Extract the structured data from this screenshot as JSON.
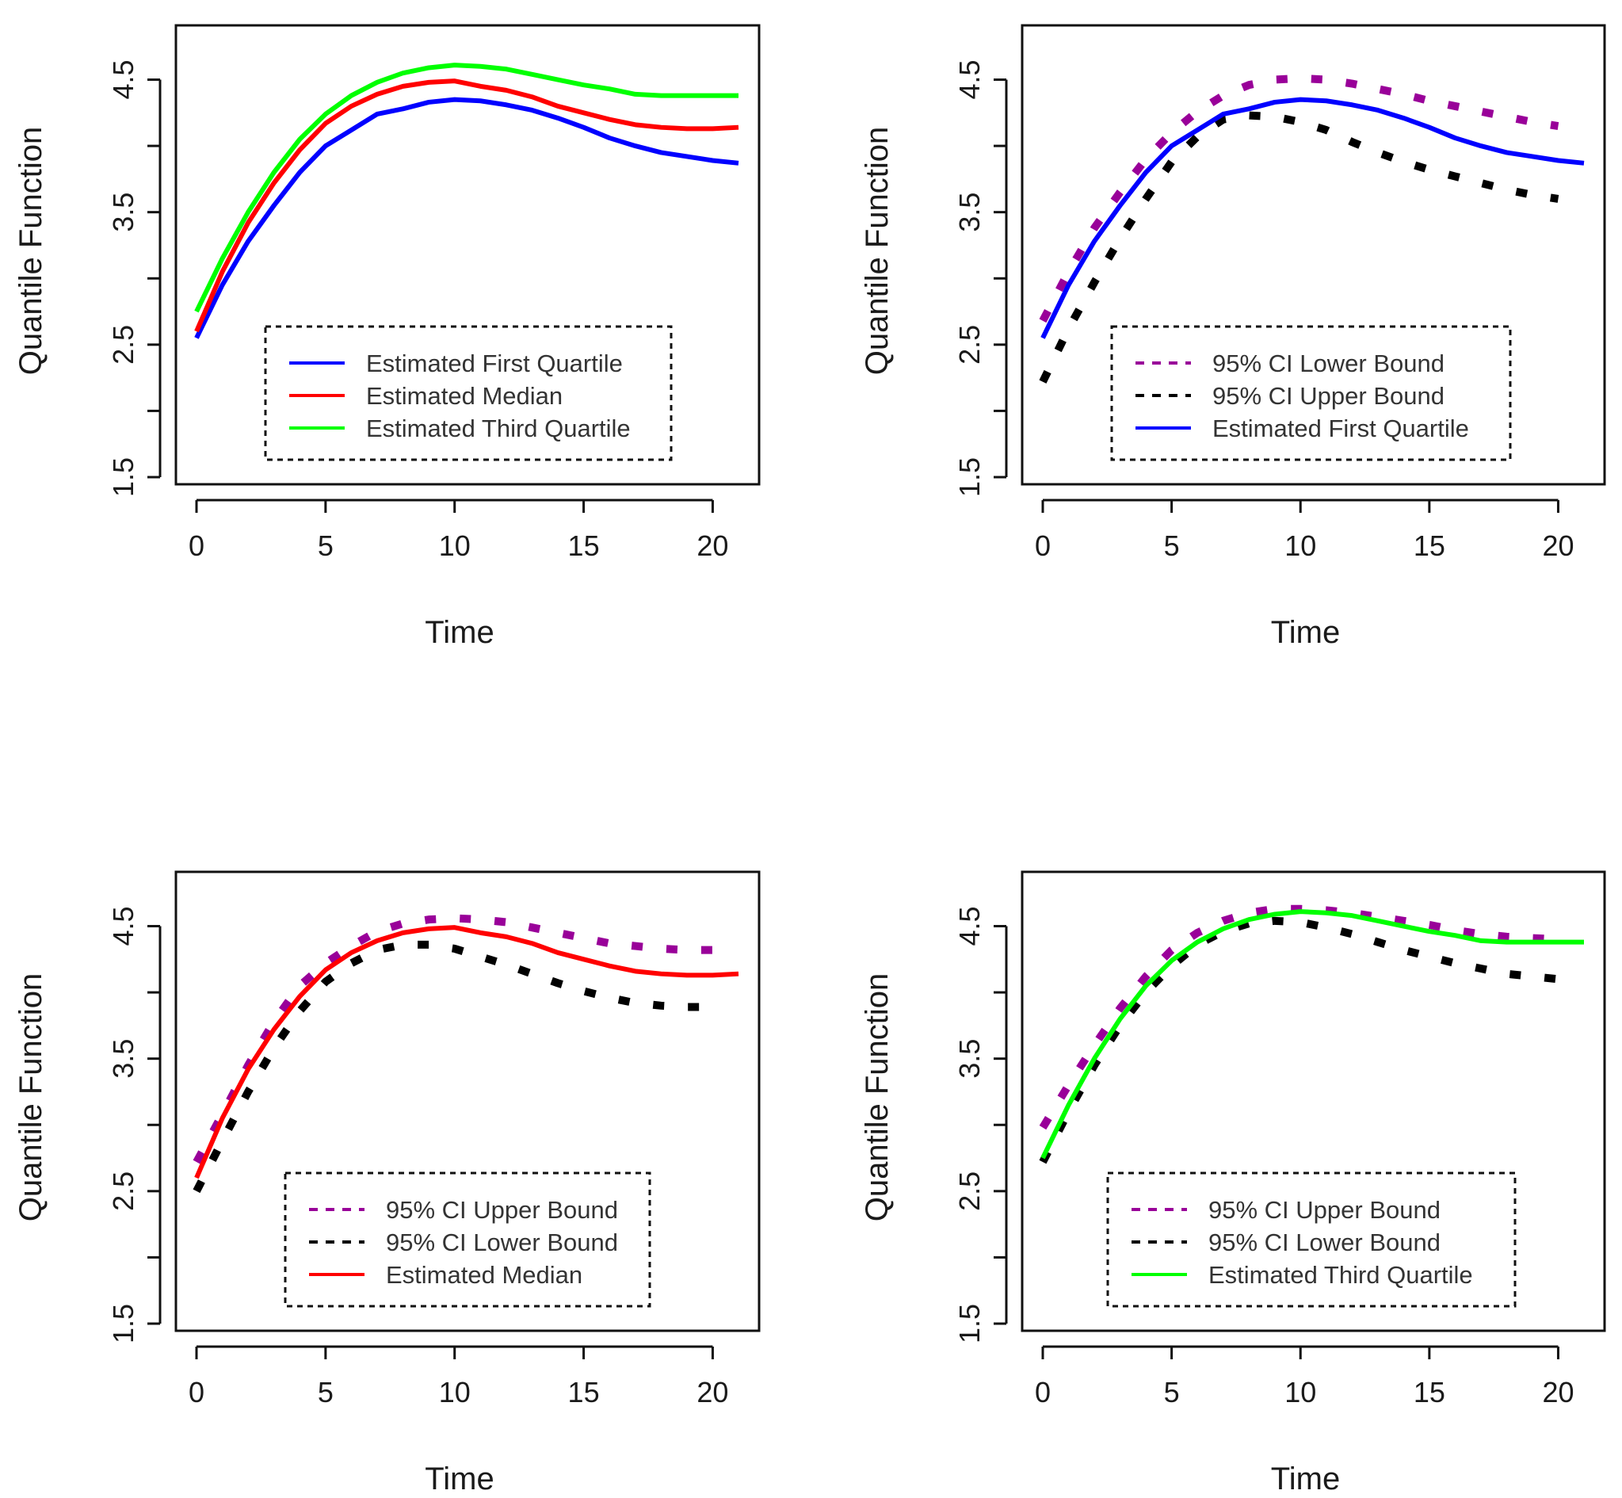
{
  "chart_data": [
    {
      "type": "line",
      "panel": "top-left",
      "title": "",
      "xlabel": "Time",
      "ylabel": "Quantile Function",
      "xlim": [
        0,
        21
      ],
      "ylim": [
        1.5,
        4.85
      ],
      "xticks": [
        0,
        5,
        10,
        15,
        20
      ],
      "yticks": [
        1.5,
        2.5,
        3.5,
        4.5
      ],
      "x": [
        0,
        1,
        2,
        3,
        4,
        5,
        6,
        7,
        8,
        9,
        10,
        11,
        12,
        13,
        14,
        15,
        16,
        17,
        18,
        19,
        20,
        21
      ],
      "legend_position": "bottom-right",
      "series": [
        {
          "name": "Estimated First Quartile",
          "color": "#0000ff",
          "style": "solid",
          "values": [
            2.55,
            2.95,
            3.28,
            3.55,
            3.8,
            4.0,
            4.12,
            4.24,
            4.28,
            4.33,
            4.35,
            4.34,
            4.31,
            4.27,
            4.21,
            4.14,
            4.06,
            4.0,
            3.95,
            3.92,
            3.89,
            3.87
          ]
        },
        {
          "name": "Estimated Median",
          "color": "#ff0000",
          "style": "solid",
          "values": [
            2.6,
            3.05,
            3.42,
            3.72,
            3.97,
            4.17,
            4.3,
            4.39,
            4.45,
            4.48,
            4.49,
            4.45,
            4.42,
            4.37,
            4.3,
            4.25,
            4.2,
            4.16,
            4.14,
            4.13,
            4.13,
            4.14
          ]
        },
        {
          "name": "Estimated Third Quartile",
          "color": "#00ff00",
          "style": "solid",
          "values": [
            2.75,
            3.15,
            3.5,
            3.8,
            4.05,
            4.24,
            4.38,
            4.48,
            4.55,
            4.59,
            4.61,
            4.6,
            4.58,
            4.54,
            4.5,
            4.46,
            4.43,
            4.39,
            4.38,
            4.38,
            4.38,
            4.38
          ]
        }
      ]
    },
    {
      "type": "line",
      "panel": "top-right",
      "title": "",
      "xlabel": "Time",
      "ylabel": "Quantile Function",
      "xlim": [
        0,
        21
      ],
      "ylim": [
        1.5,
        4.85
      ],
      "xticks": [
        0,
        5,
        10,
        15,
        20
      ],
      "yticks": [
        1.5,
        2.5,
        3.5,
        4.5
      ],
      "x": [
        0,
        1,
        2,
        3,
        4,
        5,
        6,
        7,
        8,
        9,
        10,
        11,
        12,
        13,
        14,
        15,
        16,
        17,
        18,
        19,
        20,
        21
      ],
      "legend_position": "bottom-right",
      "series": [
        {
          "name": "95% CI Lower Bound",
          "color": "#990099",
          "style": "dashed",
          "values": [
            2.68,
            3.05,
            3.38,
            3.65,
            3.9,
            4.1,
            4.26,
            4.38,
            4.46,
            4.5,
            4.51,
            4.5,
            4.47,
            4.43,
            4.39,
            4.34,
            4.3,
            4.26,
            4.22,
            4.18,
            4.15,
            null
          ]
        },
        {
          "name": "95% CI Upper Bound",
          "color": "#000000",
          "style": "dashed",
          "values": [
            2.22,
            2.62,
            2.97,
            3.3,
            3.6,
            3.88,
            4.07,
            4.2,
            4.23,
            4.22,
            4.18,
            4.12,
            4.03,
            3.95,
            3.88,
            3.82,
            3.77,
            3.72,
            3.67,
            3.63,
            3.6,
            null
          ]
        },
        {
          "name": "Estimated First Quartile",
          "color": "#0000ff",
          "style": "solid",
          "values": [
            2.55,
            2.95,
            3.28,
            3.55,
            3.8,
            4.0,
            4.12,
            4.24,
            4.28,
            4.33,
            4.35,
            4.34,
            4.31,
            4.27,
            4.21,
            4.14,
            4.06,
            4.0,
            3.95,
            3.92,
            3.89,
            3.87
          ]
        }
      ]
    },
    {
      "type": "line",
      "panel": "bottom-left",
      "title": "",
      "xlabel": "Time",
      "ylabel": "Quantile Function",
      "xlim": [
        0,
        21
      ],
      "ylim": [
        1.5,
        4.85
      ],
      "xticks": [
        0,
        5,
        10,
        15,
        20
      ],
      "yticks": [
        1.5,
        2.5,
        3.5,
        4.5
      ],
      "x": [
        0,
        1,
        2,
        3,
        4,
        5,
        6,
        7,
        8,
        9,
        10,
        11,
        12,
        13,
        14,
        15,
        16,
        17,
        18,
        19,
        20,
        21
      ],
      "legend_position": "bottom-right",
      "series": [
        {
          "name": "95% CI Upper Bound",
          "color": "#990099",
          "style": "dashed",
          "values": [
            2.72,
            3.08,
            3.45,
            3.78,
            4.05,
            4.22,
            4.35,
            4.46,
            4.52,
            4.55,
            4.56,
            4.55,
            4.53,
            4.49,
            4.45,
            4.41,
            4.37,
            4.35,
            4.33,
            4.32,
            4.32,
            null
          ]
        },
        {
          "name": "95% CI Lower Bound",
          "color": "#000000",
          "style": "dashed",
          "values": [
            2.5,
            2.88,
            3.25,
            3.58,
            3.86,
            4.08,
            4.22,
            4.32,
            4.36,
            4.36,
            4.33,
            4.27,
            4.21,
            4.14,
            4.07,
            4.01,
            3.96,
            3.92,
            3.9,
            3.89,
            3.89,
            null
          ]
        },
        {
          "name": "Estimated Median",
          "color": "#ff0000",
          "style": "solid",
          "values": [
            2.6,
            3.05,
            3.42,
            3.72,
            3.97,
            4.17,
            4.3,
            4.39,
            4.45,
            4.48,
            4.49,
            4.45,
            4.42,
            4.37,
            4.3,
            4.25,
            4.2,
            4.16,
            4.14,
            4.13,
            4.13,
            4.14
          ]
        }
      ]
    },
    {
      "type": "line",
      "panel": "bottom-right",
      "title": "",
      "xlabel": "Time",
      "ylabel": "Quantile Function",
      "xlim": [
        0,
        21
      ],
      "ylim": [
        1.5,
        4.85
      ],
      "xticks": [
        0,
        5,
        10,
        15,
        20
      ],
      "yticks": [
        1.5,
        2.5,
        3.5,
        4.5
      ],
      "x": [
        0,
        1,
        2,
        3,
        4,
        5,
        6,
        7,
        8,
        9,
        10,
        11,
        12,
        13,
        14,
        15,
        16,
        17,
        18,
        19,
        20,
        21
      ],
      "legend_position": "bottom-right",
      "series": [
        {
          "name": "95% CI Upper Bound",
          "color": "#990099",
          "style": "dashed",
          "values": [
            2.98,
            3.3,
            3.6,
            3.88,
            4.12,
            4.32,
            4.45,
            4.54,
            4.6,
            4.63,
            4.63,
            4.62,
            4.6,
            4.57,
            4.54,
            4.51,
            4.47,
            4.44,
            4.42,
            4.41,
            4.4,
            null
          ]
        },
        {
          "name": "95% CI Lower Bound",
          "color": "#000000",
          "style": "dashed",
          "values": [
            2.72,
            3.1,
            3.45,
            3.75,
            4.0,
            4.2,
            4.36,
            4.46,
            4.52,
            4.54,
            4.53,
            4.49,
            4.44,
            4.38,
            4.32,
            4.27,
            4.22,
            4.18,
            4.14,
            4.12,
            4.1,
            null
          ]
        },
        {
          "name": "Estimated Third Quartile",
          "color": "#00ff00",
          "style": "solid",
          "values": [
            2.75,
            3.15,
            3.5,
            3.8,
            4.05,
            4.24,
            4.38,
            4.48,
            4.55,
            4.59,
            4.61,
            4.6,
            4.58,
            4.54,
            4.5,
            4.46,
            4.43,
            4.39,
            4.38,
            4.38,
            4.38,
            4.38
          ]
        }
      ]
    }
  ]
}
